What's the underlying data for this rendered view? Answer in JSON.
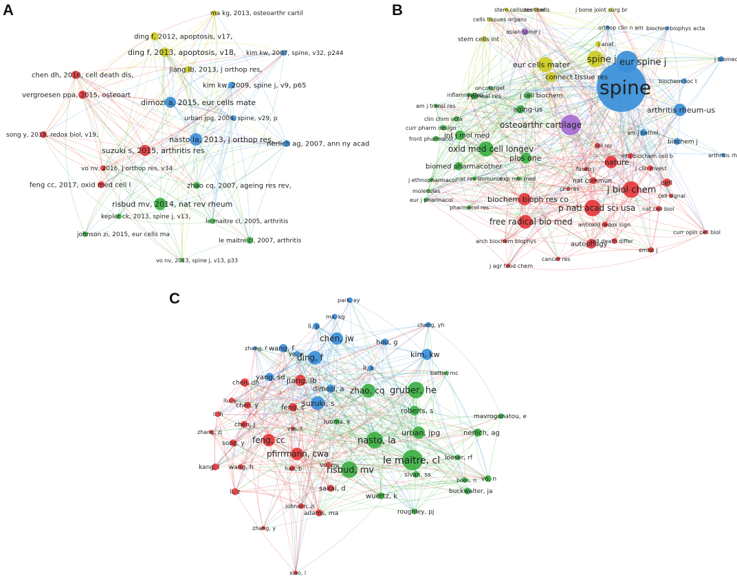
{
  "colors": {
    "red": "#e5383b",
    "green": "#3cb043",
    "blue": "#3a8fd9",
    "yellow": "#cccc22",
    "purple": "#a66dd4"
  },
  "panels": [
    {
      "letter": "A",
      "nodes": [
        {
          "label": "ma kg, 2013, osteoarthr cartil",
          "c": "yellow"
        },
        {
          "label": "ding f, 2012, apoptosis, v17,",
          "c": "yellow"
        },
        {
          "label": "ding f, 2013, apoptosis, v18,",
          "c": "yellow"
        },
        {
          "label": "kim kw, 2007, spine, v32, p244",
          "c": "blue"
        },
        {
          "label": "chen dh, 2016, cell death dis,",
          "c": "red"
        },
        {
          "label": "jiang lb, 2013, j orthop res,",
          "c": "yellow"
        },
        {
          "label": "kim kw, 2009, spine j, v9, p65",
          "c": "blue"
        },
        {
          "label": "vergroesen ppa, 2015, osteoart",
          "c": "red"
        },
        {
          "label": "dimozi a, 2015, eur cells mate",
          "c": "blue"
        },
        {
          "label": "urban jpg, 2004, spine, v29, p",
          "c": "blue"
        },
        {
          "label": "song y, 2018, redox biol, v19,",
          "c": "red"
        },
        {
          "label": "nasto la, 2013, j orthop res,",
          "c": "blue"
        },
        {
          "label": "nerlich ag, 2007, ann ny acad",
          "c": "blue"
        },
        {
          "label": "suzuki s, 2015, arthritis res",
          "c": "red"
        },
        {
          "label": "vo nv, 2016, j orthop res, v34",
          "c": "red"
        },
        {
          "label": "feng cc, 2017, oxid med cell l",
          "c": "red"
        },
        {
          "label": "zhao cq, 2007, ageing res rev,",
          "c": "green"
        },
        {
          "label": "risbud mv, 2014, nat rev rheum",
          "c": "green"
        },
        {
          "label": "kepler ck, 2013, spine j, v13,",
          "c": "green"
        },
        {
          "label": "le maitre cl, 2005, arthritis",
          "c": "green"
        },
        {
          "label": "johnson zi, 2015, eur cells ma",
          "c": "green"
        },
        {
          "label": "le maitre cl, 2007, arthritis",
          "c": "green"
        },
        {
          "label": "vo nv, 2013, spine j, v13, p33",
          "c": "green"
        }
      ]
    },
    {
      "letter": "B",
      "nodes": [
        {
          "label": "stem cells res ther",
          "c": "yellow"
        },
        {
          "label": "stem cells",
          "c": "yellow"
        },
        {
          "label": "j bone joint surg br",
          "c": "yellow"
        },
        {
          "label": "cells tissues organs",
          "c": "yellow"
        },
        {
          "label": "orthop clin n am",
          "c": "blue"
        },
        {
          "label": "biochim biophys acta",
          "c": "blue"
        },
        {
          "label": "asian spine j",
          "c": "purple"
        },
        {
          "label": "j anat",
          "c": "yellow"
        },
        {
          "label": "stem cells int",
          "c": "yellow"
        },
        {
          "label": "j biomech",
          "c": "blue"
        },
        {
          "label": "spine j",
          "c": "yellow"
        },
        {
          "label": "eur spine j",
          "c": "blue"
        },
        {
          "label": "eur cells mater",
          "c": "yellow"
        },
        {
          "label": "connect tissue res",
          "c": "yellow"
        },
        {
          "label": "spine",
          "c": "blue"
        },
        {
          "label": "biochem soc t",
          "c": "blue"
        },
        {
          "label": "oncotarget",
          "c": "green"
        },
        {
          "label": "inflammation",
          "c": "green"
        },
        {
          "label": "j pineal res",
          "c": "green"
        },
        {
          "label": "j cell biochem",
          "c": "green"
        },
        {
          "label": "am j transl res",
          "c": "green"
        },
        {
          "label": "arthritis rheum-us",
          "c": "blue"
        },
        {
          "label": "clin chim acta",
          "c": "green"
        },
        {
          "label": "aging-us",
          "c": "green"
        },
        {
          "label": "osteoarthr cartilage",
          "c": "purple"
        },
        {
          "label": "curr pharm design",
          "c": "green"
        },
        {
          "label": "int j mol med",
          "c": "green"
        },
        {
          "label": "am j pathol",
          "c": "blue"
        },
        {
          "label": "front pharmacol",
          "c": "green"
        },
        {
          "label": "biochem j",
          "c": "blue"
        },
        {
          "label": "cell rep",
          "c": "red"
        },
        {
          "label": "oxid med cell longev",
          "c": "green"
        },
        {
          "label": "int j biochem cell b",
          "c": "red"
        },
        {
          "label": "plos one",
          "c": "green"
        },
        {
          "label": "arthritis rheum",
          "c": "blue"
        },
        {
          "label": "nature",
          "c": "red"
        },
        {
          "label": "j clin invest",
          "c": "red"
        },
        {
          "label": "biomed pharmacother",
          "c": "green"
        },
        {
          "label": "faseb j",
          "c": "red"
        },
        {
          "label": "j ethnopharmacol",
          "c": "green"
        },
        {
          "label": "nat rev immunol",
          "c": "green"
        },
        {
          "label": "exp mol med",
          "c": "green"
        },
        {
          "label": "nat commun",
          "c": "red"
        },
        {
          "label": "j biol chem",
          "c": "red"
        },
        {
          "label": "cell",
          "c": "red"
        },
        {
          "label": "molecules",
          "c": "green"
        },
        {
          "label": "circ res",
          "c": "red"
        },
        {
          "label": "cell signal",
          "c": "red"
        },
        {
          "label": "eur j pharmacol",
          "c": "green"
        },
        {
          "label": "biochem bioph res co",
          "c": "red"
        },
        {
          "label": "pharmacol res",
          "c": "green"
        },
        {
          "label": "p natl acad sci usa",
          "c": "red"
        },
        {
          "label": "nat cell biol",
          "c": "red"
        },
        {
          "label": "free radical bio med",
          "c": "red"
        },
        {
          "label": "antioxid redox sign",
          "c": "red"
        },
        {
          "label": "curr opin cell biol",
          "c": "red"
        },
        {
          "label": "cell death differ",
          "c": "red"
        },
        {
          "label": "autophagy",
          "c": "red"
        },
        {
          "label": "arch biochem biophys",
          "c": "red"
        },
        {
          "label": "embo j",
          "c": "red"
        },
        {
          "label": "cancer res",
          "c": "red"
        },
        {
          "label": "j agr food chem",
          "c": "red"
        }
      ]
    },
    {
      "letter": "C",
      "nodes": [
        {
          "label": "park, ey",
          "c": "blue"
        },
        {
          "label": "ma, kg",
          "c": "blue"
        },
        {
          "label": "li, p",
          "c": "blue"
        },
        {
          "label": "cheng, yh",
          "c": "blue"
        },
        {
          "label": "ye, w",
          "c": "blue"
        },
        {
          "label": "chen, jw",
          "c": "blue"
        },
        {
          "label": "hou, g",
          "c": "blue"
        },
        {
          "label": "zhang, f",
          "c": "blue"
        },
        {
          "label": "wang, f",
          "c": "blue"
        },
        {
          "label": "kim, kw",
          "c": "blue"
        },
        {
          "label": "ding, f",
          "c": "blue"
        },
        {
          "label": "li, x",
          "c": "blue"
        },
        {
          "label": "battie, mc",
          "c": "green"
        },
        {
          "label": "yang, sd",
          "c": "blue"
        },
        {
          "label": "chen, dh",
          "c": "red"
        },
        {
          "label": "jiang, lb",
          "c": "red"
        },
        {
          "label": "gruber, he",
          "c": "green"
        },
        {
          "label": "dimozi, a",
          "c": "blue"
        },
        {
          "label": "zhao, cq",
          "c": "green"
        },
        {
          "label": "liu, y",
          "c": "red"
        },
        {
          "label": "suzuki, s",
          "c": "blue"
        },
        {
          "label": "chen, y",
          "c": "red"
        },
        {
          "label": "feng, c",
          "c": "red"
        },
        {
          "label": "li, h",
          "c": "red"
        },
        {
          "label": "roberts, s",
          "c": "green"
        },
        {
          "label": "mavrogonatou, e",
          "c": "green"
        },
        {
          "label": "luoma, k",
          "c": "green"
        },
        {
          "label": "chen, j",
          "c": "red"
        },
        {
          "label": "zhang, zj",
          "c": "red"
        },
        {
          "label": "vos, t",
          "c": "red"
        },
        {
          "label": "urban, jpg",
          "c": "green"
        },
        {
          "label": "nerlich, ag",
          "c": "green"
        },
        {
          "label": "nasto, la",
          "c": "green"
        },
        {
          "label": "feng, cc",
          "c": "red"
        },
        {
          "label": "song, y",
          "c": "red"
        },
        {
          "label": "pfirrmann, cwa",
          "c": "red"
        },
        {
          "label": "vo, nv",
          "c": "red"
        },
        {
          "label": "le maitre, cl",
          "c": "green"
        },
        {
          "label": "loeser, rf",
          "c": "green"
        },
        {
          "label": "kang, l",
          "c": "red"
        },
        {
          "label": "wang, h",
          "c": "red"
        },
        {
          "label": "han, b",
          "c": "red"
        },
        {
          "label": "risbud, mv",
          "c": "green"
        },
        {
          "label": "sivan, ss",
          "c": "green"
        },
        {
          "label": "boos, n",
          "c": "green"
        },
        {
          "label": "vo, n",
          "c": "green"
        },
        {
          "label": "sakai, d",
          "c": "red"
        },
        {
          "label": "buckwalter, ja",
          "c": "green"
        },
        {
          "label": "li, z",
          "c": "red"
        },
        {
          "label": "wuertz, k",
          "c": "green"
        },
        {
          "label": "johnson, zi",
          "c": "red"
        },
        {
          "label": "adams, ma",
          "c": "red"
        },
        {
          "label": "roughley, pj",
          "c": "green"
        },
        {
          "label": "zhang, y",
          "c": "red"
        },
        {
          "label": "xiao, l",
          "c": "red"
        }
      ]
    }
  ]
}
